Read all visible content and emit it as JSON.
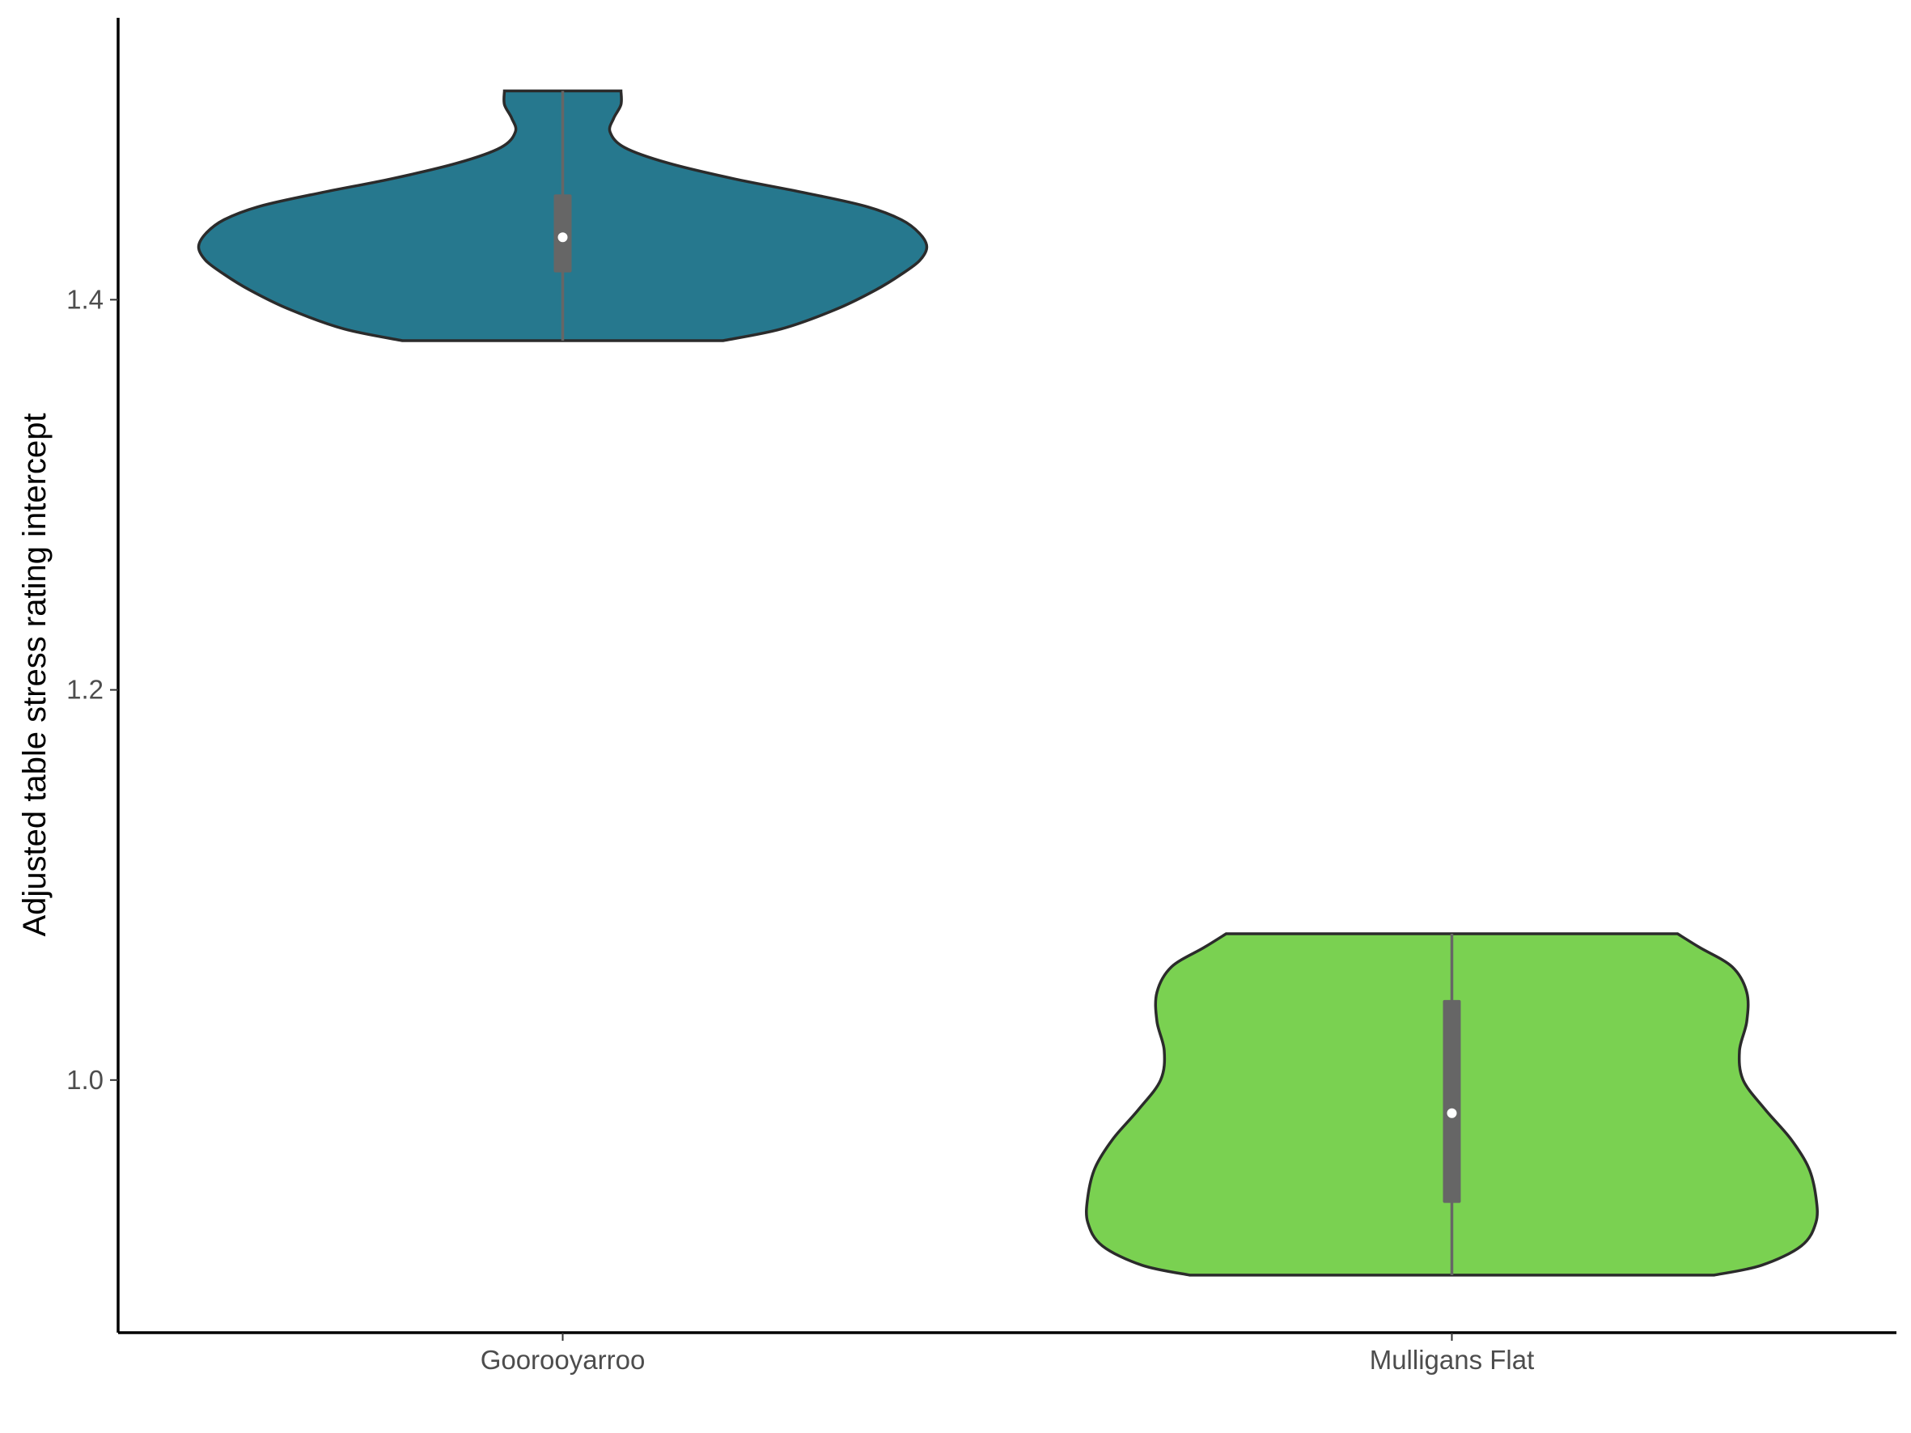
{
  "chart_data": {
    "type": "violin",
    "title": "",
    "xlabel": "",
    "ylabel": "Adjusted table stress rating intercept",
    "ylim": [
      0.8705,
      1.5445
    ],
    "yticks": [
      1.0,
      1.2,
      1.4
    ],
    "ytick_labels": [
      "1.0",
      "1.2",
      "1.4"
    ],
    "categories": [
      "Goorooyarroo",
      "Mulligans Flat"
    ],
    "grid": false,
    "legend": "none",
    "series": [
      {
        "category": "Goorooyarroo",
        "color": "#26788e",
        "min": 1.379,
        "max": 1.507,
        "q1": 1.414,
        "median": 1.432,
        "q3": 1.454,
        "density": [
          [
            1.379,
            0.44
          ],
          [
            1.385,
            0.6
          ],
          [
            1.395,
            0.75
          ],
          [
            1.405,
            0.86
          ],
          [
            1.413,
            0.93
          ],
          [
            1.42,
            0.98
          ],
          [
            1.427,
            1.0
          ],
          [
            1.434,
            0.98
          ],
          [
            1.441,
            0.93
          ],
          [
            1.448,
            0.83
          ],
          [
            1.455,
            0.66
          ],
          [
            1.462,
            0.47
          ],
          [
            1.47,
            0.29
          ],
          [
            1.478,
            0.17
          ],
          [
            1.486,
            0.13
          ],
          [
            1.493,
            0.14
          ],
          [
            1.5,
            0.16
          ],
          [
            1.507,
            0.16
          ]
        ]
      },
      {
        "category": "Mulligans Flat",
        "color": "#7ad151",
        "min": 0.9,
        "max": 1.075,
        "q1": 0.937,
        "median": 0.983,
        "q3": 1.041,
        "density": [
          [
            0.9,
            0.72
          ],
          [
            0.905,
            0.85
          ],
          [
            0.915,
            0.96
          ],
          [
            0.927,
            1.0
          ],
          [
            0.94,
            1.0
          ],
          [
            0.955,
            0.98
          ],
          [
            0.97,
            0.93
          ],
          [
            0.985,
            0.86
          ],
          [
            1.0,
            0.8
          ],
          [
            1.015,
            0.79
          ],
          [
            1.03,
            0.81
          ],
          [
            1.045,
            0.81
          ],
          [
            1.058,
            0.77
          ],
          [
            1.068,
            0.68
          ],
          [
            1.075,
            0.62
          ]
        ]
      }
    ]
  }
}
